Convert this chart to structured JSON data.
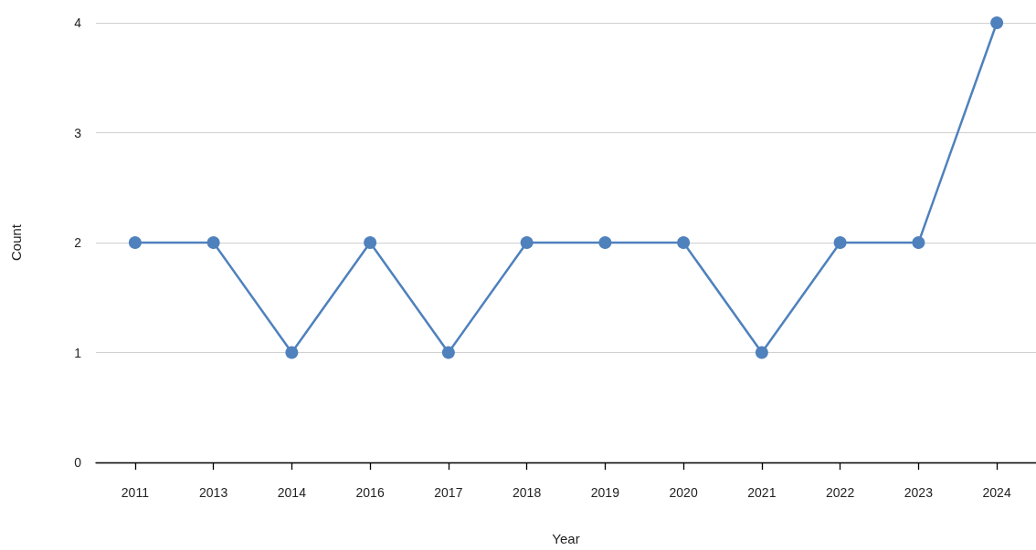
{
  "chart_data": {
    "type": "line",
    "xlabel": "Year",
    "ylabel": "Count",
    "categories": [
      "2011",
      "2013",
      "2014",
      "2016",
      "2017",
      "2018",
      "2019",
      "2020",
      "2021",
      "2022",
      "2023",
      "2024"
    ],
    "series": [
      {
        "color": "#4f81bd",
        "values": [
          2,
          2,
          1,
          2,
          1,
          2,
          2,
          2,
          1,
          2,
          2,
          4
        ]
      }
    ],
    "ylim": [
      0,
      4
    ],
    "yticks": [
      0,
      1,
      2,
      3,
      4
    ],
    "grid": "y",
    "marker": "circle",
    "line_style": "solid"
  }
}
